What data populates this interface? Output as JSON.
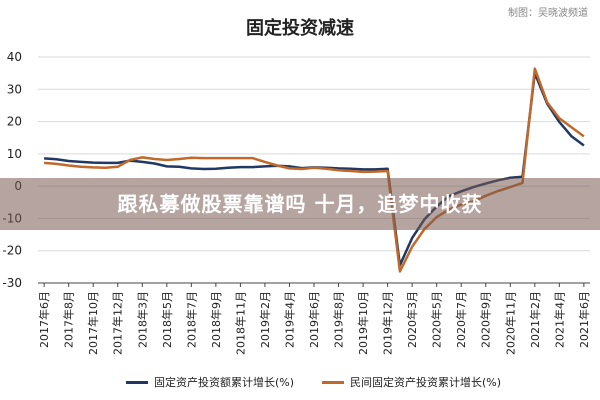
{
  "credit": "制图：吴晓波频道",
  "banner": "跟私募做股票靠谱吗 十月，追梦中收获",
  "colors": {
    "series1": "#1f3864",
    "series2": "#c0692a",
    "grid": "#d9d9d9",
    "axis": "#444444"
  },
  "chart_data": {
    "type": "line",
    "title": "固定投资减速",
    "ylim": [
      -30,
      40
    ],
    "yticks": [
      40,
      30,
      20,
      10,
      0,
      -10,
      -20,
      -30
    ],
    "grid": true,
    "legend": "bottom",
    "x": [
      "2017年6月",
      "2017年7月",
      "2017年8月",
      "2017年9月",
      "2017年10月",
      "2017年11月",
      "2017年12月",
      "2018年2月",
      "2018年3月",
      "2018年4月",
      "2018年5月",
      "2018年6月",
      "2018年7月",
      "2018年8月",
      "2018年9月",
      "2018年10月",
      "2018年11月",
      "2018年12月",
      "2019年2月",
      "2019年3月",
      "2019年4月",
      "2019年5月",
      "2019年6月",
      "2019年7月",
      "2019年8月",
      "2019年9月",
      "2019年10月",
      "2019年11月",
      "2019年12月",
      "2020年2月",
      "2020年3月",
      "2020年4月",
      "2020年5月",
      "2020年6月",
      "2020年7月",
      "2020年8月",
      "2020年9月",
      "2020年10月",
      "2020年11月",
      "2020年12月",
      "2021年2月",
      "2021年3月",
      "2021年4月",
      "2021年5月",
      "2021年6月"
    ],
    "xtick_labels": [
      "2017年6月",
      "2017年8月",
      "2017年10月",
      "2017年12月",
      "2018年3月",
      "2018年5月",
      "2018年7月",
      "2018年9月",
      "2018年11月",
      "2019年2月",
      "2019年4月",
      "2019年6月",
      "2019年8月",
      "2019年10月",
      "2019年12月",
      "2020年3月",
      "2020年5月",
      "2020年7月",
      "2020年9月",
      "2020年11月",
      "2021年2月",
      "2021年4月",
      "2021年6月"
    ],
    "series": [
      {
        "name": "固定资产投资额累计增长(%)",
        "values": [
          8.6,
          8.3,
          7.8,
          7.5,
          7.3,
          7.2,
          7.2,
          7.9,
          7.5,
          7.0,
          6.1,
          6.0,
          5.5,
          5.3,
          5.4,
          5.7,
          5.9,
          5.9,
          6.1,
          6.3,
          6.1,
          5.6,
          5.8,
          5.7,
          5.5,
          5.4,
          5.2,
          5.2,
          5.4,
          -24.5,
          -16.1,
          -10.3,
          -6.3,
          -3.1,
          -1.6,
          -0.3,
          0.8,
          1.8,
          2.6,
          2.9,
          35.0,
          25.6,
          19.9,
          15.4,
          12.6
        ]
      },
      {
        "name": "民间固定资产投资累计增长(%)",
        "values": [
          7.2,
          6.9,
          6.4,
          6.0,
          5.8,
          5.7,
          6.0,
          8.1,
          8.9,
          8.4,
          8.1,
          8.4,
          8.8,
          8.7,
          8.7,
          8.7,
          8.7,
          8.7,
          7.5,
          6.4,
          5.5,
          5.3,
          5.7,
          5.4,
          4.9,
          4.7,
          4.4,
          4.5,
          4.7,
          -26.4,
          -18.8,
          -13.3,
          -9.6,
          -7.3,
          -5.7,
          -4.7,
          -3.0,
          -1.5,
          -0.3,
          1.0,
          36.4,
          26.0,
          21.0,
          18.2,
          15.4
        ]
      }
    ]
  }
}
